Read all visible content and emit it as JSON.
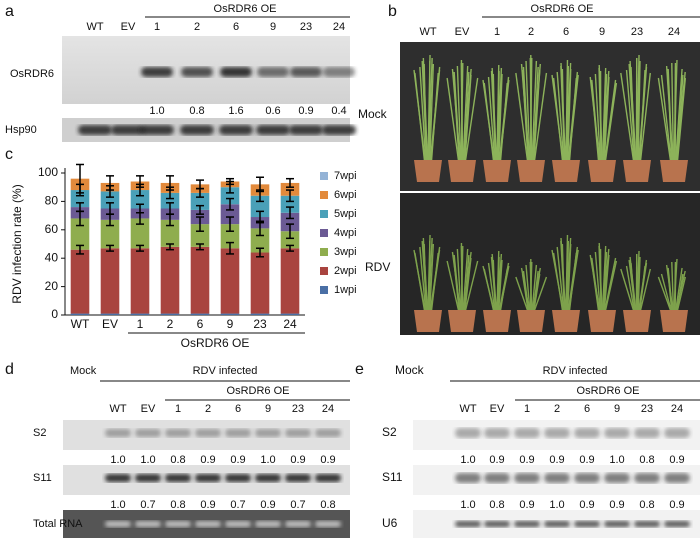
{
  "panel_a": {
    "label": "a",
    "lanes": [
      "WT",
      "EV",
      "1",
      "2",
      "6",
      "9",
      "23",
      "24"
    ],
    "group": "OsRDR6 OE",
    "rows": [
      "OsRDR6",
      "Hsp90"
    ],
    "quantities": [
      "1.0",
      "0.8",
      "1.6",
      "0.6",
      "0.9",
      "0.4"
    ]
  },
  "panel_b": {
    "label": "b",
    "lanes": [
      "WT",
      "EV",
      "1",
      "2",
      "6",
      "9",
      "23",
      "24"
    ],
    "group": "OsRDR6 OE",
    "rows": [
      "Mock",
      "RDV"
    ]
  },
  "chart_data": {
    "type": "bar",
    "stacked": true,
    "panel_label": "c",
    "ylabel": "RDV infection rate (%)",
    "group": "OsRDR6 OE",
    "categories": [
      "WT",
      "EV",
      "1",
      "2",
      "6",
      "9",
      "23",
      "24"
    ],
    "ylim": [
      0,
      100
    ],
    "yticks": [
      0,
      20,
      40,
      60,
      80,
      100
    ],
    "series": [
      {
        "name": "1wpi",
        "color": "#4a6fa5",
        "values": [
          1,
          1,
          1,
          1,
          1,
          1,
          1,
          1
        ]
      },
      {
        "name": "2wpi",
        "color": "#a9443f",
        "values": [
          45,
          46,
          46,
          47,
          47,
          46,
          43,
          46
        ],
        "errors": [
          3,
          2,
          2,
          2,
          2,
          4,
          3,
          2
        ]
      },
      {
        "name": "3wpi",
        "color": "#8fad4e",
        "values": [
          22,
          20,
          21,
          19,
          16,
          17,
          17,
          12
        ],
        "errors": [
          5,
          4,
          4,
          4,
          5,
          5,
          5,
          5
        ]
      },
      {
        "name": "4wpi",
        "color": "#6b5a94",
        "values": [
          8,
          8,
          7,
          8,
          10,
          14,
          8,
          13
        ],
        "errors": [
          3,
          4,
          3,
          4,
          3,
          4,
          4,
          4
        ]
      },
      {
        "name": "5wpi",
        "color": "#4aa0b8",
        "values": [
          12,
          12,
          13,
          11,
          12,
          12,
          15,
          12
        ],
        "errors": [
          4,
          4,
          4,
          4,
          3,
          4,
          4,
          4
        ]
      },
      {
        "name": "6wpi",
        "color": "#e28a3c",
        "values": [
          8,
          6,
          6,
          7,
          6,
          4,
          8,
          9
        ],
        "errors": [
          10,
          5,
          4,
          5,
          3,
          2,
          5,
          3
        ]
      },
      {
        "name": "7wpi",
        "color": "#94b3d6",
        "values": [
          0,
          0,
          0,
          0,
          0,
          0,
          0,
          0
        ]
      }
    ]
  },
  "panel_d": {
    "label": "d",
    "mock": "Mock",
    "infected": "RDV infected",
    "group": "OsRDR6 OE",
    "lanes": [
      "WT",
      "EV",
      "1",
      "2",
      "6",
      "9",
      "23",
      "24"
    ],
    "rows": [
      {
        "name": "S2",
        "quantities": [
          "1.0",
          "1.0",
          "0.8",
          "0.9",
          "0.9",
          "1.0",
          "0.9",
          "0.9"
        ]
      },
      {
        "name": "S11",
        "quantities": [
          "1.0",
          "0.7",
          "0.8",
          "0.9",
          "0.7",
          "0.9",
          "0.7",
          "0.8"
        ]
      },
      {
        "name": "Total RNA"
      }
    ]
  },
  "panel_e": {
    "label": "e",
    "mock": "Mock",
    "infected": "RDV infected",
    "group": "OsRDR6 OE",
    "lanes": [
      "WT",
      "EV",
      "1",
      "2",
      "6",
      "9",
      "23",
      "24"
    ],
    "rows": [
      {
        "name": "S2",
        "quantities": [
          "1.0",
          "0.9",
          "0.9",
          "0.9",
          "0.9",
          "1.0",
          "0.8",
          "0.9"
        ]
      },
      {
        "name": "S11",
        "quantities": [
          "1.0",
          "0.8",
          "0.9",
          "1.0",
          "0.9",
          "0.9",
          "0.8",
          "0.9"
        ]
      },
      {
        "name": "U6"
      }
    ]
  }
}
